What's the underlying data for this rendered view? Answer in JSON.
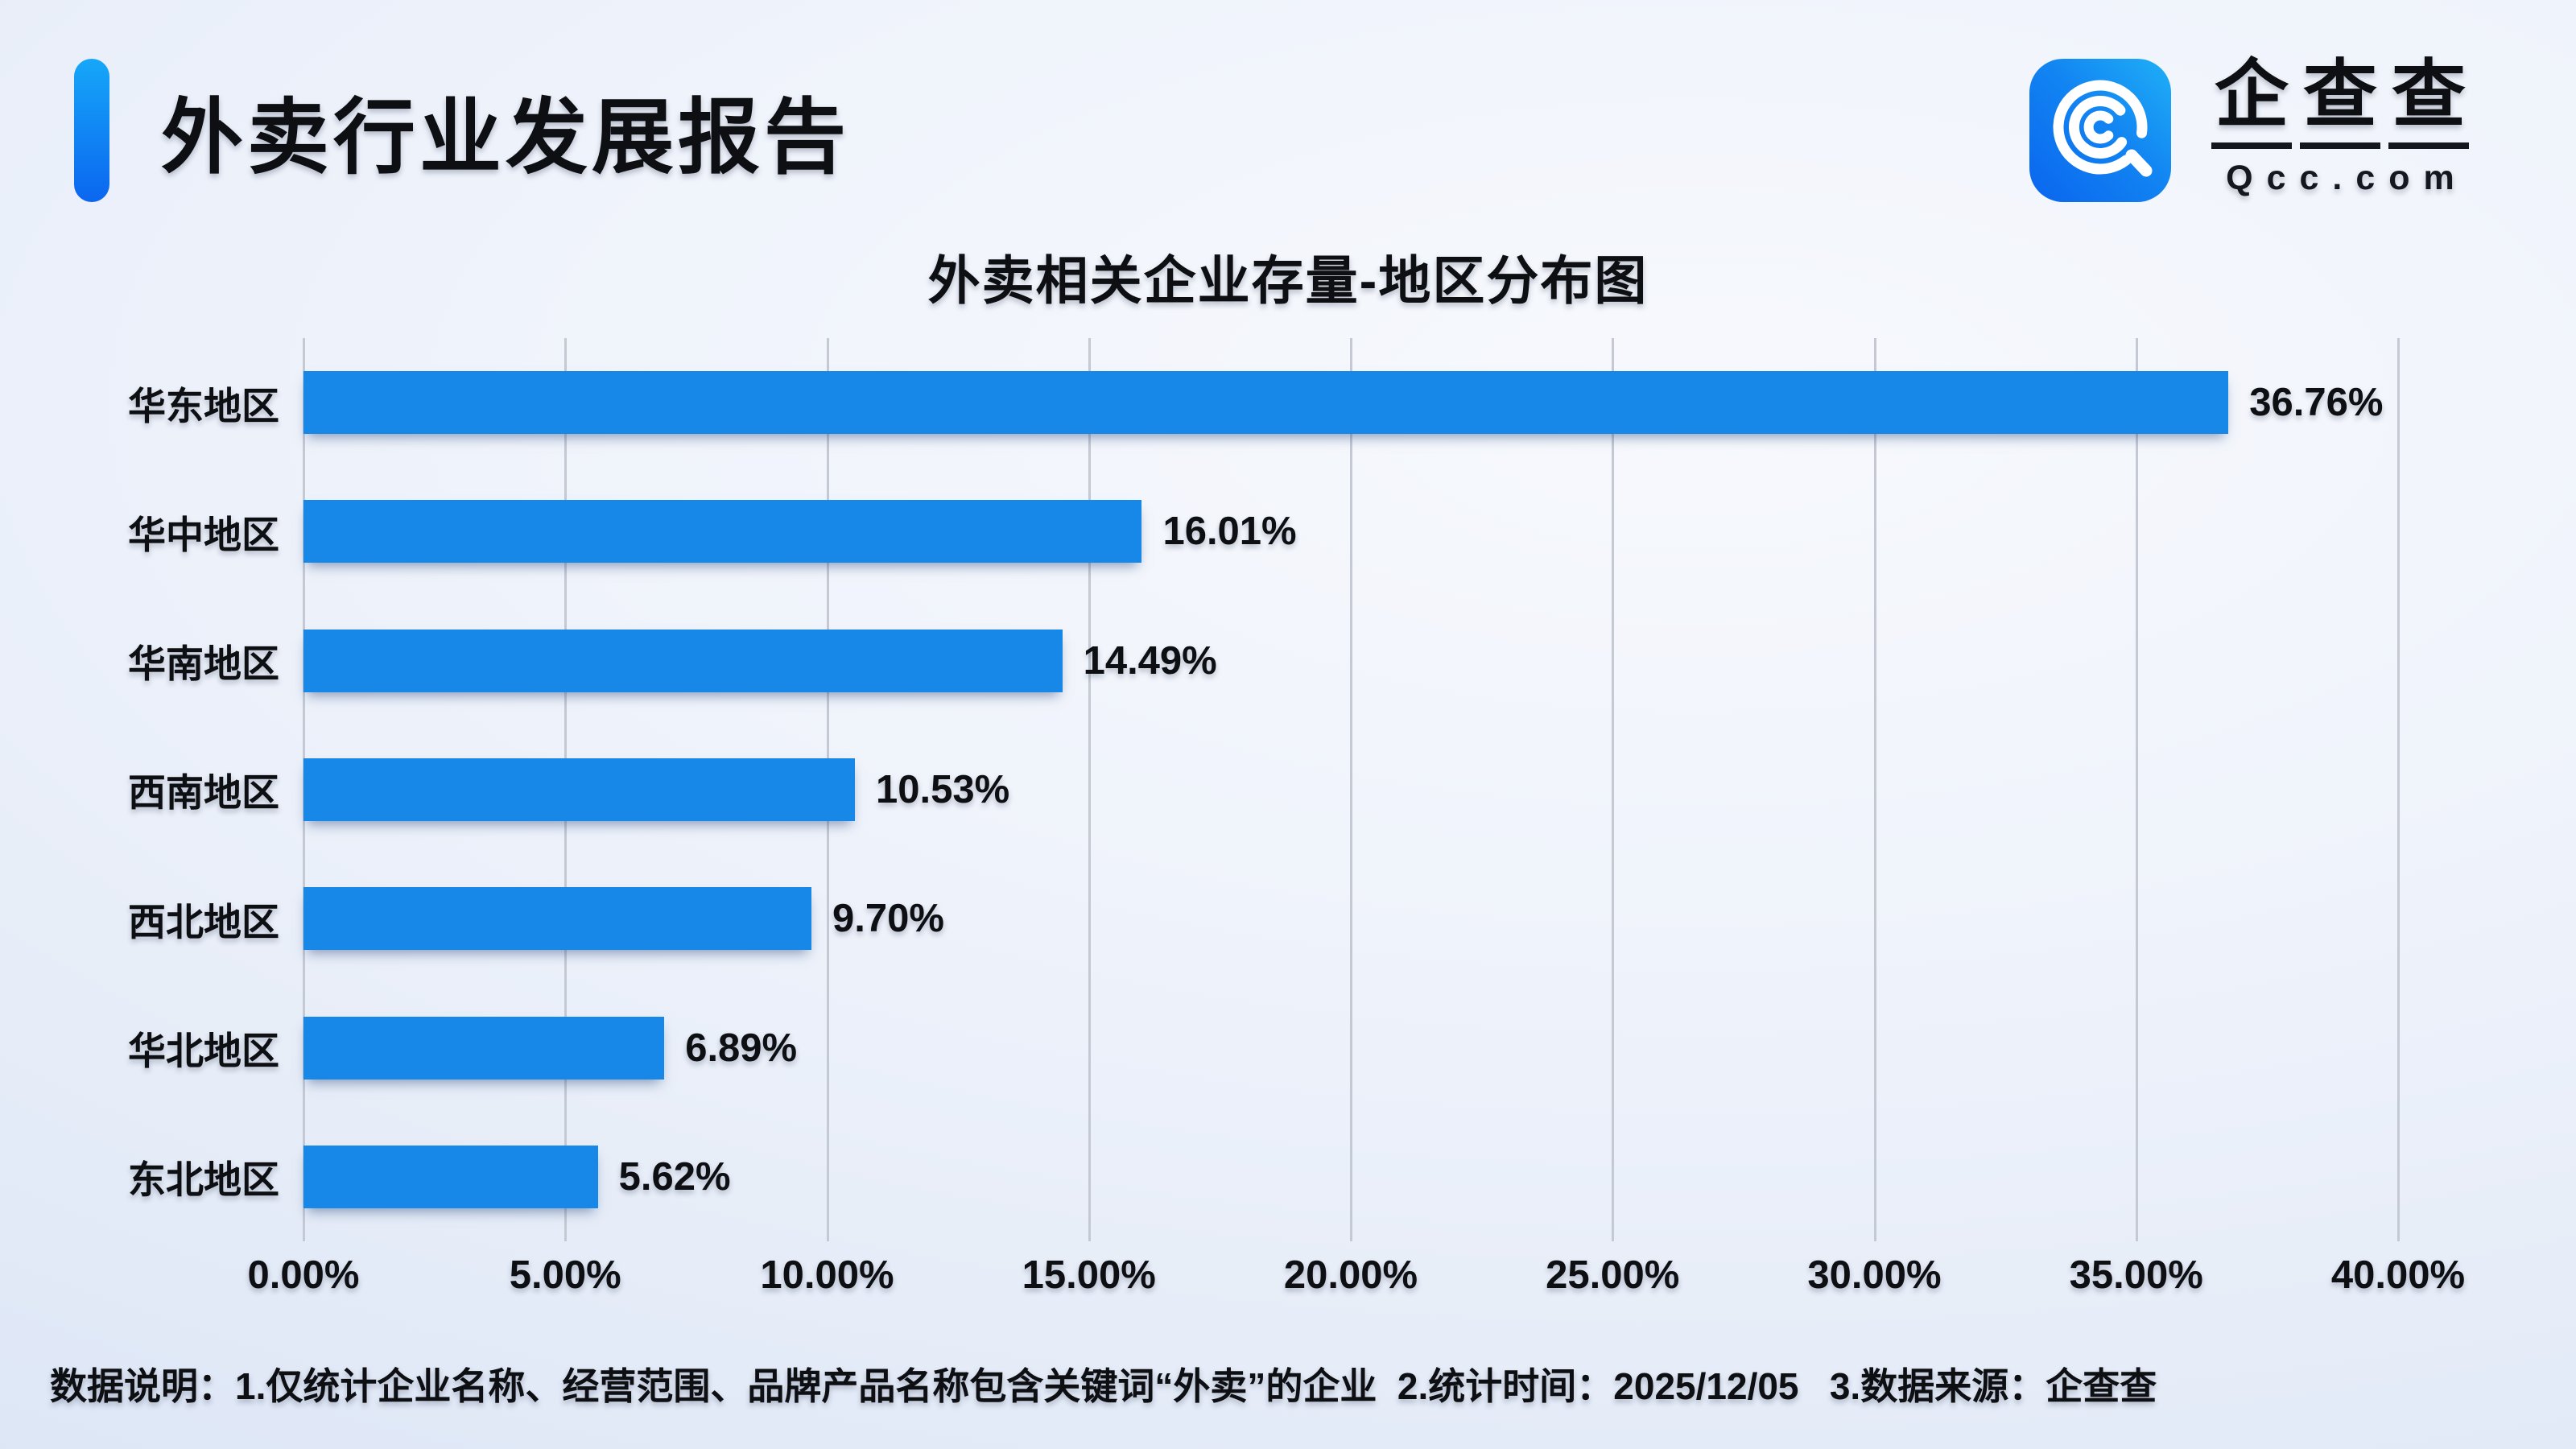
{
  "header": {
    "title": "外卖行业发展报告",
    "accent_colors": [
      "#16a7f9",
      "#0b66ef"
    ]
  },
  "logo": {
    "icon": "qcc-magnifier-icon",
    "icon_colors": [
      "#0a65ee",
      "#1fb0f7"
    ],
    "brand_chars": [
      "企",
      "查",
      "查"
    ],
    "brand_name": "企查查",
    "domain": "Qcc.com"
  },
  "chart_data": {
    "type": "bar",
    "orientation": "horizontal",
    "title": "外卖相关企业存量-地区分布图",
    "categories": [
      "华东地区",
      "华中地区",
      "华南地区",
      "西南地区",
      "西北地区",
      "华北地区",
      "东北地区"
    ],
    "values": [
      36.76,
      16.01,
      14.49,
      10.53,
      9.7,
      6.89,
      5.62
    ],
    "value_labels": [
      "36.76%",
      "16.01%",
      "14.49%",
      "10.53%",
      "9.70%",
      "6.89%",
      "5.62%"
    ],
    "xlim": [
      0,
      40
    ],
    "x_ticks": [
      "0.00%",
      "5.00%",
      "10.00%",
      "15.00%",
      "20.00%",
      "25.00%",
      "30.00%",
      "35.00%",
      "40.00%"
    ],
    "bar_color": "#1787e8",
    "grid": true,
    "gridline_color": "#c4c9d4",
    "legend": false
  },
  "footer": {
    "note": "数据说明：1.仅统计企业名称、经营范围、品牌产品名称包含关键词“外卖”的企业  2.统计时间：2025/12/05   3.数据来源：企查查"
  }
}
